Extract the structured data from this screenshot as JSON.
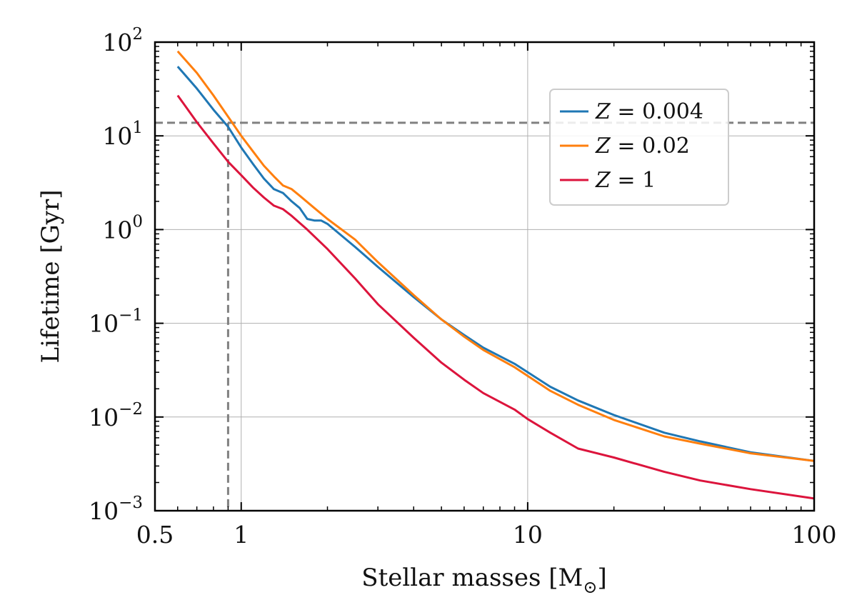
{
  "chart_data": {
    "type": "line",
    "xlabel": "Stellar masses [M",
    "xlabel_sub": "⊙",
    "xlabel_close": "]",
    "ylabel": "Lifetime [Gyr]",
    "xscale": "log",
    "yscale": "log",
    "xlim": [
      0.5,
      100
    ],
    "ylim": [
      0.001,
      100
    ],
    "x_ticks": [
      {
        "value": 0.5,
        "label": "0.5"
      },
      {
        "value": 1,
        "label": "1"
      },
      {
        "value": 10,
        "label": "10"
      },
      {
        "value": 100,
        "label": "100"
      }
    ],
    "y_ticks": [
      {
        "value": 0.001,
        "base": "10",
        "exp": "−3"
      },
      {
        "value": 0.01,
        "base": "10",
        "exp": "−2"
      },
      {
        "value": 0.1,
        "base": "10",
        "exp": "−1"
      },
      {
        "value": 1,
        "base": "10",
        "exp": "0"
      },
      {
        "value": 10,
        "base": "10",
        "exp": "1"
      },
      {
        "value": 100,
        "base": "10",
        "exp": "2"
      }
    ],
    "grid": true,
    "legend_position": "top-right",
    "reference_lines": [
      {
        "orientation": "horizontal",
        "value": 13.8,
        "color": "#808080",
        "style": "dashed"
      },
      {
        "orientation": "vertical",
        "value": 0.9,
        "color": "#808080",
        "style": "dashed"
      }
    ],
    "series": [
      {
        "name": "Z = 0.004",
        "name_var": "Z",
        "name_rest": " = 0.004",
        "color": "#1f77b4",
        "x": [
          0.6,
          0.7,
          0.8,
          0.9,
          1.0,
          1.1,
          1.2,
          1.3,
          1.4,
          1.5,
          1.6,
          1.7,
          1.8,
          1.9,
          2.0,
          2.5,
          3,
          4,
          5,
          6,
          7,
          9,
          12,
          15,
          20,
          30,
          40,
          60,
          100
        ],
        "y": [
          55,
          32,
          19,
          12.5,
          7.5,
          5.0,
          3.5,
          2.7,
          2.45,
          2.0,
          1.7,
          1.3,
          1.25,
          1.25,
          1.15,
          0.65,
          0.4,
          0.19,
          0.11,
          0.075,
          0.055,
          0.037,
          0.021,
          0.015,
          0.0105,
          0.0068,
          0.0055,
          0.0042,
          0.0034
        ]
      },
      {
        "name": "Z = 0.02",
        "name_var": "Z",
        "name_rest": " = 0.02",
        "color": "#ff7f0e",
        "x": [
          0.6,
          0.7,
          0.8,
          0.9,
          1.0,
          1.1,
          1.2,
          1.3,
          1.4,
          1.5,
          1.6,
          1.8,
          2.0,
          2.5,
          3,
          4,
          5,
          6,
          7,
          9,
          12,
          15,
          20,
          30,
          40,
          60,
          100
        ],
        "y": [
          80,
          47,
          27,
          16,
          10,
          6.8,
          4.8,
          3.7,
          2.95,
          2.7,
          2.3,
          1.7,
          1.3,
          0.78,
          0.45,
          0.2,
          0.11,
          0.072,
          0.052,
          0.034,
          0.019,
          0.0135,
          0.0093,
          0.0062,
          0.0052,
          0.0041,
          0.0034
        ]
      },
      {
        "name": "Z = 1",
        "name_var": "Z",
        "name_rest": " = 1",
        "color": "#dc143c",
        "x": [
          0.6,
          0.7,
          0.8,
          0.9,
          1.0,
          1.1,
          1.2,
          1.3,
          1.4,
          1.5,
          1.7,
          2.0,
          2.5,
          3,
          4,
          5,
          6,
          7,
          9,
          10,
          12,
          15,
          20,
          30,
          40,
          60,
          100
        ],
        "y": [
          27,
          14,
          8.3,
          5.3,
          3.8,
          2.8,
          2.2,
          1.8,
          1.65,
          1.4,
          1.0,
          0.62,
          0.3,
          0.16,
          0.07,
          0.038,
          0.025,
          0.018,
          0.012,
          0.0095,
          0.0068,
          0.0046,
          0.0037,
          0.0026,
          0.0021,
          0.0017,
          0.00135
        ]
      }
    ]
  }
}
